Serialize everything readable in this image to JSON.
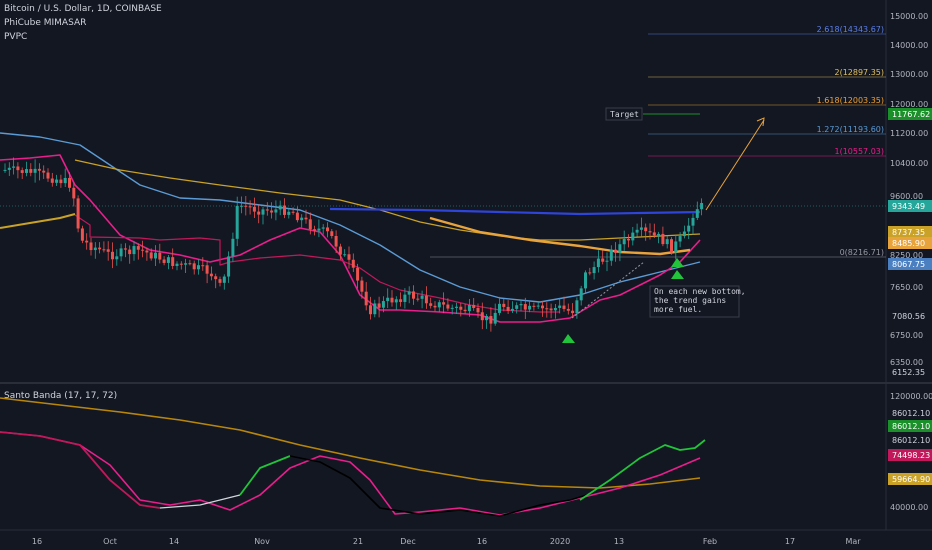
{
  "header": {
    "symbol": "Bitcoin / U.S. Dollar, 1D, COINBASE",
    "indicator1": "PhiCube MIMASAR",
    "indicator2": "PVPC",
    "lower_indicator": "Santo Banda (17, 17, 72)"
  },
  "colors": {
    "up": "#26a69a",
    "down": "#ef5350",
    "blue": "#5b9bd5",
    "orange": "#e8a33c",
    "gold": "#c9a227",
    "pink": "#e91e8c",
    "navy": "#2f44d8",
    "green": "#21c43a",
    "dark_red": "#c2185b"
  },
  "chart_data": [
    {
      "type": "candlestick",
      "y_ticks": [
        "15000.00",
        "14000.00",
        "13000.00",
        "12000.00",
        "11200.00",
        "10400.00",
        "9600.00",
        "8250.00",
        "7650.00",
        "6750.00",
        "6350.00"
      ],
      "x_ticks": [
        "16",
        "Oct",
        "14",
        "Nov",
        "21",
        "Dec",
        "16",
        "2020",
        "13",
        "Feb",
        "17",
        "Mar"
      ],
      "fib_levels": [
        {
          "label": "2.618(14343.67)",
          "value": 14343.67,
          "color": "#5b7fe8"
        },
        {
          "label": "2(12897.35)",
          "value": 12897.35,
          "color": "#e0c060"
        },
        {
          "label": "1.618(12003.35)",
          "value": 12003.35,
          "color": "#f0a030"
        },
        {
          "label": "1.272(11193.60)",
          "value": 11193.6,
          "color": "#5b9bd5"
        },
        {
          "label": "1(10557.03)",
          "value": 10557.03,
          "color": "#e91e8c"
        },
        {
          "label": "0(8216.71)",
          "value": 8216.71,
          "color": "#9598a1"
        }
      ],
      "price_tags": [
        {
          "label": "11767.62",
          "value": 11767.62,
          "color": "#1b8f2a"
        },
        {
          "label": "9343.49",
          "value": 9343.49,
          "color": "#26a69a"
        },
        {
          "label": "8737.35",
          "value": 8737.35,
          "color": "#c9a227"
        },
        {
          "label": "8485.90",
          "value": 8485.9,
          "color": "#e8a33c"
        },
        {
          "label": "8067.75",
          "value": 8067.75,
          "color": "#4a7fc1"
        },
        {
          "label": "7080.56",
          "value": 7080.56,
          "color": "#131722"
        },
        {
          "label": "6152.35",
          "value": 6152.35,
          "color": "#131722"
        }
      ],
      "annotations": {
        "target_label": "Target",
        "note_lines": [
          "On each new bottom,",
          "the trend gains",
          "more fuel."
        ]
      }
    },
    {
      "type": "line",
      "title": "Santo Banda (17, 17, 72)",
      "y_ticks": [
        "120000.00",
        "40000.00"
      ],
      "price_tags": [
        {
          "label": "86012.10",
          "color": "#131722"
        },
        {
          "label": "86012.10",
          "color": "#1b8f2a"
        },
        {
          "label": "86012.10",
          "color": "#131722"
        },
        {
          "label": "74498.23",
          "color": "#c2185b"
        },
        {
          "label": "59664.90",
          "color": "#c9a227"
        }
      ]
    }
  ]
}
